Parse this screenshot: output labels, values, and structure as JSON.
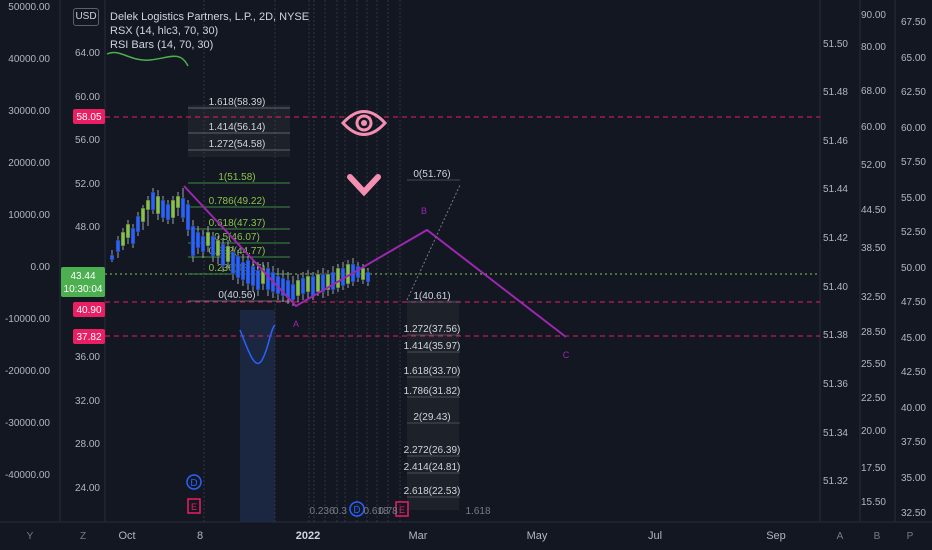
{
  "header": {
    "symbol_line": "Delek Logistics Partners, L.P., 2D, NYSE",
    "indicator_1": "RSX (14, hlc3, 70, 30)",
    "indicator_2": "RSI Bars (14, 70, 30)",
    "currency": "USD"
  },
  "far_left_axis": [
    "50000.00",
    "40000.00",
    "30000.00",
    "20000.00",
    "10000.00",
    "0.00",
    "-10000.00",
    "-20000.00",
    "-30000.00",
    "-40000.00"
  ],
  "left_axis": [
    "64.00",
    "60.00",
    "56.00",
    "52.00",
    "48.00",
    "44.00",
    "40.00",
    "36.00",
    "32.00",
    "28.00",
    "24.00"
  ],
  "left_badges": {
    "b1": "58.05",
    "b2": "40.90",
    "b3": "37.82",
    "price": "43.44",
    "countdown": "10:30:04"
  },
  "right_axis_1": [
    "51.50",
    "51.48",
    "51.46",
    "51.44",
    "51.42",
    "51.40",
    "51.38",
    "51.36",
    "51.34",
    "51.32"
  ],
  "right_axis_2": [
    "90.00",
    "80.00",
    "68.00",
    "60.00",
    "52.00",
    "44.50",
    "38.50",
    "32.50",
    "28.50",
    "25.50",
    "22.50",
    "20.00",
    "17.50",
    "15.50"
  ],
  "right_axis_3": [
    "67.50",
    "65.00",
    "62.50",
    "60.00",
    "57.50",
    "55.00",
    "52.50",
    "50.00",
    "47.50",
    "45.00",
    "42.50",
    "40.00",
    "37.50",
    "35.00",
    "32.50"
  ],
  "fib_left": [
    "1.618(58.39)",
    "1.414(56.14)",
    "1.272(54.58)",
    "1(51.58)",
    "0.786(49.22)",
    "0.618(47.37)",
    "0.5(46.07)",
    "0.382(44.77)",
    "0.236(43.16)",
    "0(40.56)"
  ],
  "fib_right": [
    "0(51.76)",
    "1(40.61)",
    "1.272(37.56)",
    "1.414(35.97)",
    "1.618(33.70)",
    "1.786(31.82)",
    "2(29.43)",
    "2.272(26.39)",
    "2.414(24.81)",
    "2.618(22.53)"
  ],
  "fib_bottom": [
    "0.236",
    "0.3",
    "0.618",
    "0.78",
    "1.618"
  ],
  "wave_labels": {
    "a": "A",
    "b": "B",
    "c": "C"
  },
  "events": {
    "d1": "D",
    "e1": "E",
    "d2": "D",
    "e2": "E"
  },
  "time_axis": [
    "Oct",
    "8",
    "2022",
    "Mar",
    "May",
    "Jul",
    "Sep"
  ],
  "bottom_buttons": {
    "y": "Y",
    "z": "Z",
    "a": "A",
    "b": "B",
    "p": "P"
  },
  "colors": {
    "background": "#131722",
    "magenta": "#e91e63",
    "purple": "#9c27b0",
    "green": "#4caf50",
    "lime": "#8bc34a",
    "blue": "#2962ff"
  }
}
